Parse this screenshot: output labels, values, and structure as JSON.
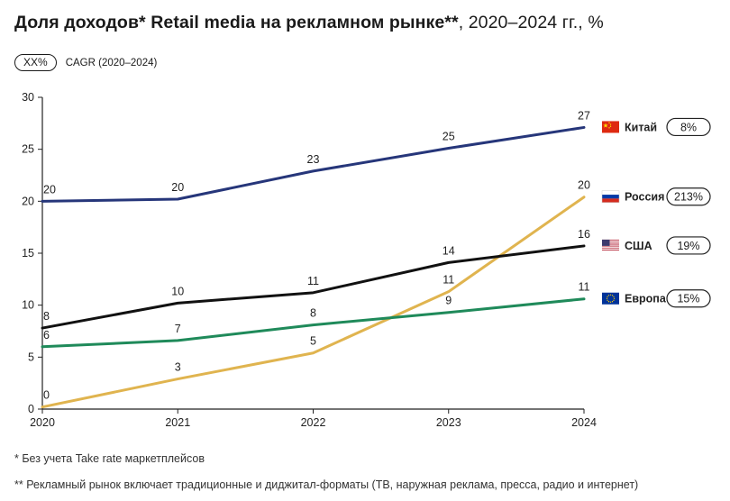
{
  "title": {
    "bold": "Доля доходов* Retail media на рекламном рынке**",
    "rest": ", 2020–2024 гг., %"
  },
  "legend": {
    "pill": "XX%",
    "label": "CAGR (2020–2024)"
  },
  "chart_data": {
    "type": "line",
    "title": "Доля доходов* Retail media на рекламном рынке**, 2020–2024 гг., %",
    "xlabel": "",
    "ylabel": "",
    "categories": [
      "2020",
      "2021",
      "2022",
      "2023",
      "2024"
    ],
    "ylim": [
      0,
      30
    ],
    "yticks": [
      0,
      5,
      10,
      15,
      20,
      25,
      30
    ],
    "grid": false,
    "series": [
      {
        "name": "Китай",
        "cagr": "8%",
        "color": "#26367a",
        "flag": "china-flag-icon",
        "values": [
          20,
          20.2,
          22.9,
          25.1,
          27.1
        ],
        "labels": [
          "20",
          "20",
          "23",
          "25",
          "27"
        ]
      },
      {
        "name": "Россия",
        "cagr": "213%",
        "color": "#e0b44f",
        "flag": "russia-flag-icon",
        "values": [
          0.2,
          2.9,
          5.4,
          11.3,
          20.4
        ],
        "labels": [
          "0",
          "3",
          "5",
          "11",
          "20"
        ]
      },
      {
        "name": "США",
        "cagr": "19%",
        "color": "#111111",
        "flag": "usa-flag-icon",
        "values": [
          7.8,
          10.2,
          11.2,
          14.1,
          15.7
        ],
        "labels": [
          "8",
          "10",
          "11",
          "14",
          "16"
        ]
      },
      {
        "name": "Европа",
        "cagr": "15%",
        "color": "#1f8a5a",
        "flag": "eu-flag-icon",
        "values": [
          6.0,
          6.6,
          8.1,
          9.3,
          10.6
        ],
        "labels": [
          "6",
          "7",
          "8",
          "9",
          "11"
        ]
      }
    ]
  },
  "footnotes": {
    "note1": "* Без учета Take rate маркетплейсов",
    "note2": "** Рекламный рынок включает традиционные и диджитал-форматы (ТВ, наружная реклама, пресса, радио и интернет)"
  }
}
